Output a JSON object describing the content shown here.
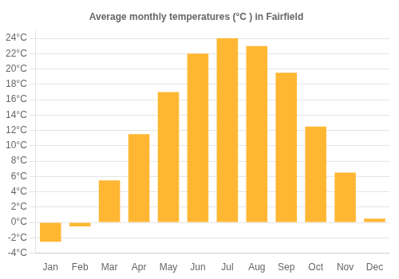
{
  "chart_data": {
    "type": "bar",
    "title": "Average monthly temperatures (°C ) in Fairfield",
    "categories": [
      "Jan",
      "Feb",
      "Mar",
      "Apr",
      "May",
      "Jun",
      "Jul",
      "Aug",
      "Sep",
      "Oct",
      "Nov",
      "Dec"
    ],
    "values": [
      -2.5,
      -0.5,
      5.5,
      11.5,
      17.0,
      22.0,
      24.0,
      23.0,
      19.5,
      12.5,
      6.5,
      0.5
    ],
    "color": "#FFB733",
    "ylim": [
      -4,
      25
    ],
    "yticks": [
      {
        "value": -4,
        "label": "-4°C"
      },
      {
        "value": -2,
        "label": "-2°C"
      },
      {
        "value": 0,
        "label": "0°C"
      },
      {
        "value": 2,
        "label": "2°C"
      },
      {
        "value": 4,
        "label": "4°C"
      },
      {
        "value": 6,
        "label": "6°C"
      },
      {
        "value": 8,
        "label": "8°C"
      },
      {
        "value": 10,
        "label": "10°C"
      },
      {
        "value": 12,
        "label": "12°C"
      },
      {
        "value": 14,
        "label": "14°C"
      },
      {
        "value": 16,
        "label": "16°C"
      },
      {
        "value": 18,
        "label": "18°C"
      },
      {
        "value": 20,
        "label": "20°C"
      },
      {
        "value": 22,
        "label": "22°C"
      },
      {
        "value": 24,
        "label": "24°C"
      }
    ],
    "grid": true
  }
}
